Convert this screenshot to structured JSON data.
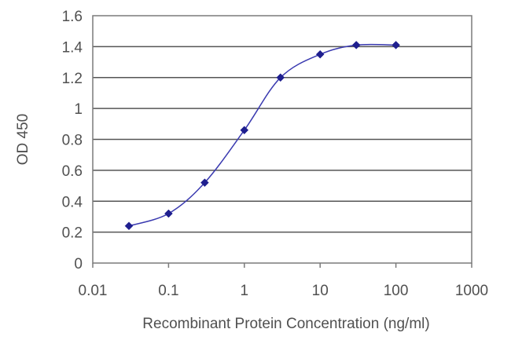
{
  "chart_data": {
    "type": "line",
    "title": "",
    "xlabel": "Recombinant Protein Concentration (ng/ml)",
    "ylabel": "OD 450",
    "x_scale": "log",
    "xlim": [
      0.01,
      1000
    ],
    "ylim": [
      0,
      1.6
    ],
    "x_ticks": [
      "0.01",
      "0.1",
      "1",
      "10",
      "100",
      "1000"
    ],
    "y_ticks": [
      "0",
      "0.2",
      "0.4",
      "0.6",
      "0.8",
      "1",
      "1.2",
      "1.4",
      "1.6"
    ],
    "grid": "horizontal",
    "legend": "none",
    "series": [
      {
        "color": "#1f1f8f",
        "marker": "diamond",
        "x": [
          0.03,
          0.1,
          0.3,
          1,
          3,
          10,
          30,
          100
        ],
        "y": [
          0.24,
          0.32,
          0.52,
          0.86,
          1.2,
          1.35,
          1.41,
          1.41
        ]
      }
    ]
  }
}
